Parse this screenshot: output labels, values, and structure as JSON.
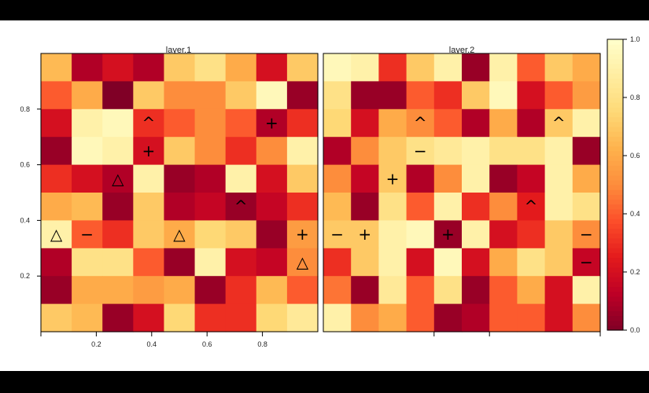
{
  "chart_data": {
    "type": "heatmap",
    "rows_order": "top-to-bottom",
    "panels": [
      {
        "title": "layer.1",
        "values": [
          [
            0.65,
            0.1,
            0.2,
            0.1,
            0.7,
            0.8,
            0.6,
            0.2,
            0.7
          ],
          [
            0.4,
            0.6,
            0.0,
            0.7,
            0.5,
            0.5,
            0.7,
            0.95,
            0.05
          ],
          [
            0.2,
            0.9,
            0.95,
            0.3,
            0.4,
            0.5,
            0.4,
            0.1,
            0.3
          ],
          [
            0.05,
            0.95,
            0.9,
            0.2,
            0.7,
            0.5,
            0.3,
            0.5,
            0.9
          ],
          [
            0.3,
            0.2,
            0.1,
            0.9,
            0.05,
            0.1,
            0.9,
            0.2,
            0.7
          ],
          [
            0.6,
            0.65,
            0.05,
            0.7,
            0.1,
            0.15,
            0.05,
            0.15,
            0.3
          ],
          [
            0.9,
            0.4,
            0.3,
            0.7,
            0.6,
            0.75,
            0.7,
            0.05,
            0.55
          ],
          [
            0.1,
            0.8,
            0.8,
            0.4,
            0.05,
            0.9,
            0.2,
            0.15,
            0.5
          ],
          [
            0.05,
            0.6,
            0.6,
            0.55,
            0.6,
            0.05,
            0.3,
            0.65,
            0.4
          ],
          [
            0.7,
            0.65,
            0.05,
            0.2,
            0.75,
            0.3,
            0.3,
            0.75,
            0.85
          ]
        ],
        "symbols": [
          {
            "row": 2,
            "col": 3,
            "glyph": "^"
          },
          {
            "row": 2,
            "col": 7,
            "glyph": "+"
          },
          {
            "row": 3,
            "col": 3,
            "glyph": "+"
          },
          {
            "row": 4,
            "col": 2,
            "glyph": "△"
          },
          {
            "row": 5,
            "col": 6,
            "glyph": "^"
          },
          {
            "row": 6,
            "col": 0,
            "glyph": "△"
          },
          {
            "row": 6,
            "col": 1,
            "glyph": "−"
          },
          {
            "row": 6,
            "col": 4,
            "glyph": "△"
          },
          {
            "row": 6,
            "col": 8,
            "glyph": "+"
          },
          {
            "row": 7,
            "col": 8,
            "glyph": "△"
          }
        ]
      },
      {
        "title": "layer.2",
        "values": [
          [
            0.95,
            0.9,
            0.3,
            0.7,
            0.9,
            0.05,
            0.9,
            0.4,
            0.7,
            0.6
          ],
          [
            0.8,
            0.05,
            0.05,
            0.4,
            0.3,
            0.7,
            0.95,
            0.2,
            0.4,
            0.55
          ],
          [
            0.75,
            0.2,
            0.6,
            0.5,
            0.4,
            0.1,
            0.6,
            0.1,
            0.7,
            0.9
          ],
          [
            0.1,
            0.5,
            0.7,
            0.8,
            0.85,
            0.9,
            0.8,
            0.8,
            0.9,
            0.05
          ],
          [
            0.5,
            0.15,
            0.7,
            0.1,
            0.5,
            0.9,
            0.05,
            0.15,
            0.9,
            0.6
          ],
          [
            0.65,
            0.05,
            0.8,
            0.4,
            0.9,
            0.3,
            0.5,
            0.25,
            0.9,
            0.8
          ],
          [
            0.7,
            0.7,
            0.9,
            0.95,
            0.05,
            0.9,
            0.2,
            0.3,
            0.7,
            0.5
          ],
          [
            0.3,
            0.7,
            0.9,
            0.2,
            0.95,
            0.2,
            0.6,
            0.8,
            0.7,
            0.15
          ],
          [
            0.45,
            0.05,
            0.85,
            0.4,
            0.8,
            0.05,
            0.4,
            0.6,
            0.2,
            0.9
          ],
          [
            0.9,
            0.5,
            0.6,
            0.4,
            0.05,
            0.1,
            0.4,
            0.4,
            0.2,
            0.5
          ]
        ],
        "symbols": [
          {
            "row": 2,
            "col": 3,
            "glyph": "^"
          },
          {
            "row": 2,
            "col": 8,
            "glyph": "^"
          },
          {
            "row": 3,
            "col": 3,
            "glyph": "−"
          },
          {
            "row": 4,
            "col": 2,
            "glyph": "+"
          },
          {
            "row": 5,
            "col": 7,
            "glyph": "^"
          },
          {
            "row": 6,
            "col": 0,
            "glyph": "−"
          },
          {
            "row": 6,
            "col": 1,
            "glyph": "+"
          },
          {
            "row": 6,
            "col": 4,
            "glyph": "+"
          },
          {
            "row": 6,
            "col": 9,
            "glyph": "−"
          },
          {
            "row": 7,
            "col": 9,
            "glyph": "−"
          }
        ]
      }
    ],
    "y_ticks": [
      "0.2",
      "0.4",
      "0.6",
      "0.8"
    ],
    "y_tick_values": [
      0.2,
      0.4,
      0.6,
      0.8
    ],
    "x_ticks": [
      "0.2",
      "0.4",
      "0.6",
      "0.8"
    ],
    "x_tick_values": [
      0.2,
      0.4,
      0.6,
      0.8
    ],
    "colorbar": {
      "range": [
        0,
        1
      ],
      "tick_values": [
        0,
        0.2,
        0.4,
        0.6,
        0.8,
        1
      ],
      "tick_labels": [
        "0.0",
        "0.2",
        "0.4",
        "0.6",
        "0.8",
        "1.0"
      ]
    },
    "colors": {
      "low": "#7f0022",
      "stops": [
        "#800026",
        "#bd0026",
        "#e31a1c",
        "#fc4e2a",
        "#fd8d3c",
        "#feb24c",
        "#fed976",
        "#ffeda0",
        "#ffffcc"
      ]
    }
  }
}
